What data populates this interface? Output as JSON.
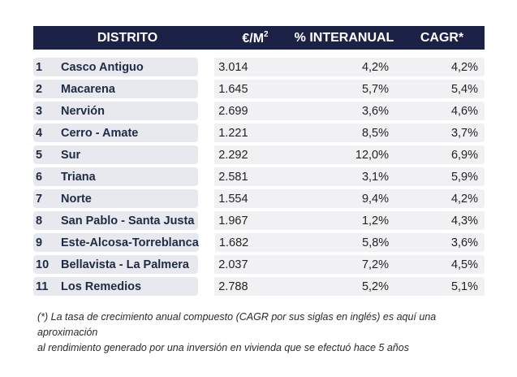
{
  "header": {
    "distrito": "DISTRITO",
    "price": "€/M",
    "price_sup": "2",
    "interanual": "% INTERANUAL",
    "cagr": "CAGR*"
  },
  "rows": [
    {
      "num": "1",
      "name": "Casco Antiguo",
      "price": "3.014",
      "interanual": "4,2%",
      "cagr": "4,2%"
    },
    {
      "num": "2",
      "name": "Macarena",
      "price": "1.645",
      "interanual": "5,7%",
      "cagr": "5,4%"
    },
    {
      "num": "3",
      "name": "Nervión",
      "price": "2.699",
      "interanual": "3,6%",
      "cagr": "4,6%"
    },
    {
      "num": "4",
      "name": "Cerro - Amate",
      "price": "1.221",
      "interanual": "8,5%",
      "cagr": "3,7%"
    },
    {
      "num": "5",
      "name": "Sur",
      "price": "2.292",
      "interanual": "12,0%",
      "cagr": "6,9%"
    },
    {
      "num": "6",
      "name": "Triana",
      "price": "2.581",
      "interanual": "3,1%",
      "cagr": "5,9%"
    },
    {
      "num": "7",
      "name": "Norte",
      "price": "1.554",
      "interanual": "9,4%",
      "cagr": "4,2%"
    },
    {
      "num": "8",
      "name": "San Pablo - Santa Justa",
      "price": "1.967",
      "interanual": "1,2%",
      "cagr": "4,3%"
    },
    {
      "num": "9",
      "name": "Este-Alcosa-Torreblanca",
      "price": "1.682",
      "interanual": "5,8%",
      "cagr": "3,6%"
    },
    {
      "num": "10",
      "name": "Bellavista - La Palmera",
      "price": "2.037",
      "interanual": "7,2%",
      "cagr": "4,5%"
    },
    {
      "num": "11",
      "name": "Los Remedios",
      "price": "2.788",
      "interanual": "5,2%",
      "cagr": "5,1%"
    }
  ],
  "footnote": {
    "line1": "(*) La tasa de crecimiento anual compuesto (CAGR por sus siglas en inglés) es aquí una aproximación",
    "line2": "al rendimiento generado por una inversión en vivienda que se efectuó hace 5 años"
  },
  "colors": {
    "header_bg": "#1c2246",
    "name_cell_bg": "#e8e9ee",
    "value_cell_bg": "#f1f1f4"
  }
}
